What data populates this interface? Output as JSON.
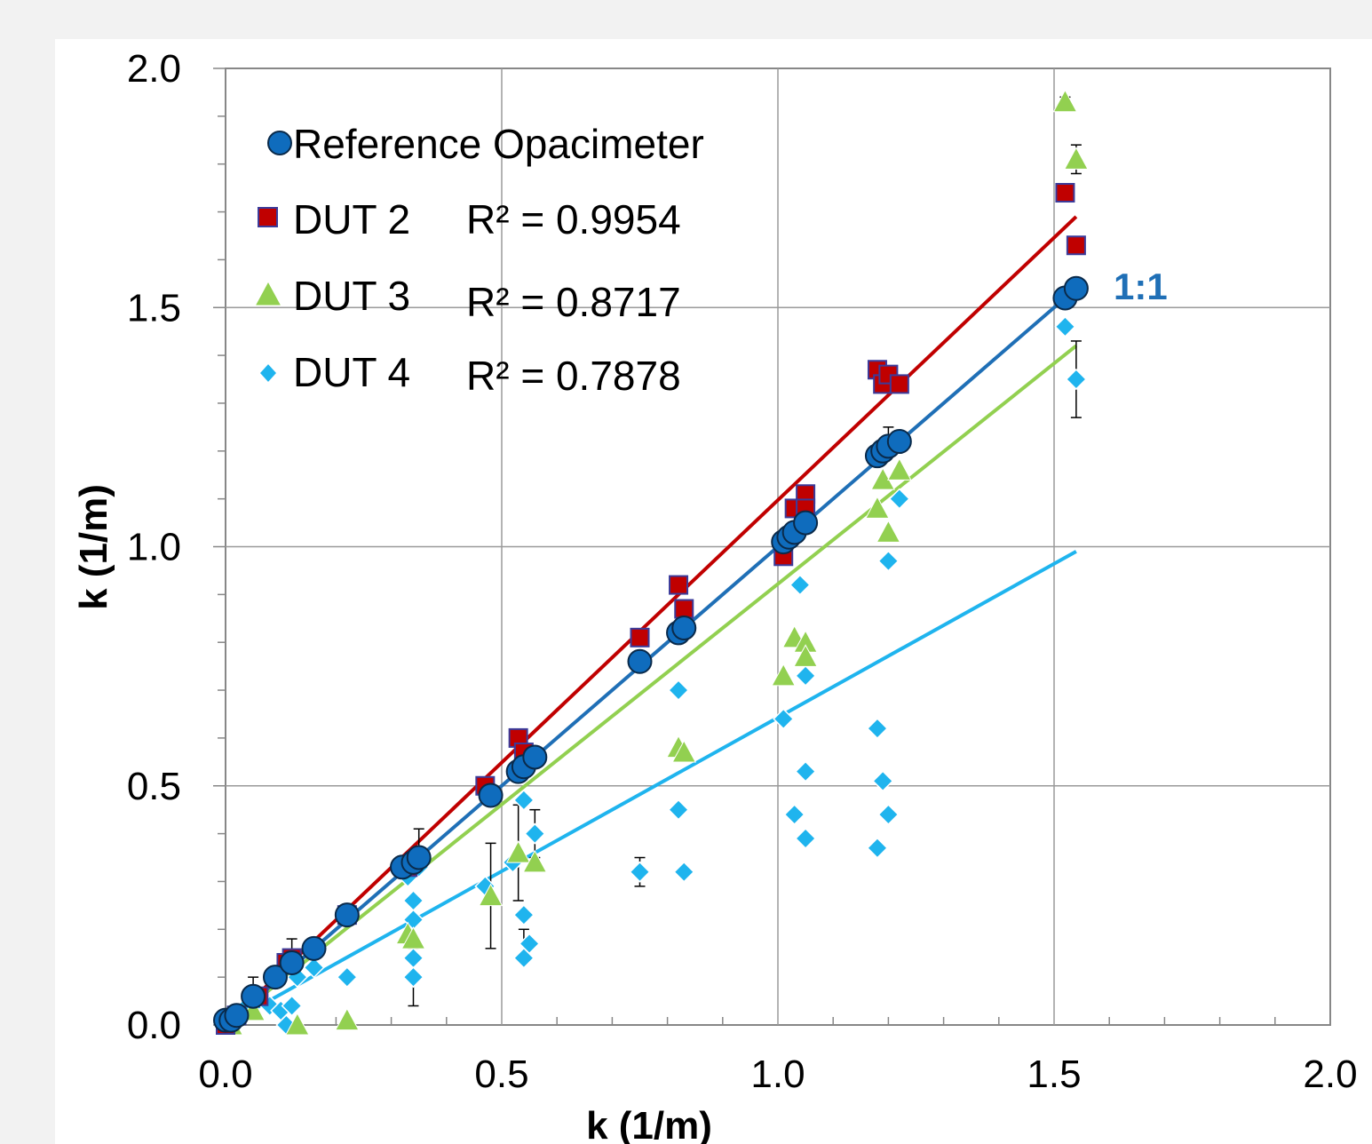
{
  "chart_data": {
    "type": "scatter",
    "xlabel": "k (1/m)",
    "ylabel": "k (1/m)",
    "xlim": [
      0,
      2
    ],
    "ylim": [
      0,
      2
    ],
    "x_ticks": [
      "0.0",
      "0.5",
      "1.0",
      "1.5",
      "2.0"
    ],
    "y_ticks": [
      "0.0",
      "0.5",
      "1.0",
      "1.5",
      "2.0"
    ],
    "grid": true,
    "legend_position": "top-left",
    "annotation": "1:1",
    "annotation_color": "#1f6fb6",
    "series": [
      {
        "name": "Reference Opacimeter",
        "legend_label": "Reference Opacimeter",
        "marker": "circle",
        "color": "#0f6cbd",
        "fit_color": "#1f6fb6",
        "fit": [
          [
            0.0,
            0.0
          ],
          [
            1.54,
            1.54
          ]
        ],
        "points": [
          [
            0.0,
            0.01
          ],
          [
            0.01,
            0.01
          ],
          [
            0.02,
            0.02
          ],
          [
            0.05,
            0.06
          ],
          [
            0.09,
            0.1
          ],
          [
            0.12,
            0.13
          ],
          [
            0.16,
            0.16
          ],
          [
            0.22,
            0.23
          ],
          [
            0.32,
            0.33
          ],
          [
            0.34,
            0.34
          ],
          [
            0.35,
            0.35
          ],
          [
            0.48,
            0.48
          ],
          [
            0.53,
            0.53
          ],
          [
            0.54,
            0.54
          ],
          [
            0.56,
            0.56
          ],
          [
            0.75,
            0.76
          ],
          [
            0.82,
            0.82
          ],
          [
            0.83,
            0.83
          ],
          [
            1.01,
            1.01
          ],
          [
            1.02,
            1.02
          ],
          [
            1.03,
            1.03
          ],
          [
            1.05,
            1.05
          ],
          [
            1.18,
            1.19
          ],
          [
            1.19,
            1.2
          ],
          [
            1.2,
            1.21
          ],
          [
            1.22,
            1.22
          ],
          [
            1.52,
            1.52
          ],
          [
            1.54,
            1.54
          ]
        ],
        "error_bars": [
          [
            0.05,
            0.07,
            0.03
          ],
          [
            0.12,
            0.15,
            0.03
          ],
          [
            0.35,
            0.38,
            0.03
          ],
          [
            1.2,
            1.23,
            0.02
          ]
        ]
      },
      {
        "name": "DUT 2",
        "legend_label": "DUT 2",
        "r2_label": "R² = 0.9954",
        "marker": "square",
        "color": "#c00000",
        "fit_color": "#c00000",
        "fit": [
          [
            0.0,
            0.0
          ],
          [
            1.54,
            1.69
          ]
        ],
        "points": [
          [
            0.0,
            0.0
          ],
          [
            0.02,
            0.02
          ],
          [
            0.06,
            0.06
          ],
          [
            0.11,
            0.13
          ],
          [
            0.12,
            0.14
          ],
          [
            0.22,
            0.23
          ],
          [
            0.33,
            0.33
          ],
          [
            0.47,
            0.5
          ],
          [
            0.53,
            0.6
          ],
          [
            0.54,
            0.57
          ],
          [
            0.75,
            0.81
          ],
          [
            0.82,
            0.92
          ],
          [
            0.83,
            0.87
          ],
          [
            1.01,
            0.98
          ],
          [
            1.03,
            1.08
          ],
          [
            1.05,
            1.11
          ],
          [
            1.05,
            1.08
          ],
          [
            1.18,
            1.37
          ],
          [
            1.19,
            1.34
          ],
          [
            1.2,
            1.36
          ],
          [
            1.22,
            1.34
          ],
          [
            1.52,
            1.74
          ],
          [
            1.54,
            1.63
          ]
        ]
      },
      {
        "name": "DUT 3",
        "legend_label": "DUT 3",
        "r2_label": "R² = 0.8717",
        "marker": "triangle",
        "color": "#92d050",
        "fit_color": "#92d050",
        "fit": [
          [
            0.0,
            0.0
          ],
          [
            1.54,
            1.42
          ]
        ],
        "points": [
          [
            0.01,
            0.0
          ],
          [
            0.05,
            0.03
          ],
          [
            0.13,
            0.0
          ],
          [
            0.22,
            0.01
          ],
          [
            0.33,
            0.19
          ],
          [
            0.34,
            0.18
          ],
          [
            0.48,
            0.27
          ],
          [
            0.53,
            0.36
          ],
          [
            0.56,
            0.34
          ],
          [
            0.82,
            0.58
          ],
          [
            0.83,
            0.57
          ],
          [
            1.01,
            0.73
          ],
          [
            1.03,
            0.81
          ],
          [
            1.05,
            0.8
          ],
          [
            1.05,
            0.77
          ],
          [
            1.18,
            1.08
          ],
          [
            1.19,
            1.14
          ],
          [
            1.2,
            1.03
          ],
          [
            1.22,
            1.16
          ],
          [
            1.52,
            1.93
          ],
          [
            1.54,
            1.81
          ]
        ],
        "error_bars": [
          [
            0.48,
            0.27,
            0.11
          ],
          [
            0.53,
            0.36,
            0.1
          ],
          [
            1.52,
            1.93,
            0.01
          ],
          [
            1.54,
            1.81,
            0.03
          ]
        ]
      },
      {
        "name": "DUT 4",
        "legend_label": "DUT 4",
        "r2_label": "R² = 0.7878",
        "marker": "diamond",
        "color": "#1fb4ee",
        "fit_color": "#1fb4ee",
        "fit": [
          [
            0.0,
            0.0
          ],
          [
            1.54,
            0.99
          ]
        ],
        "points": [
          [
            0.0,
            0.0
          ],
          [
            0.01,
            0.0
          ],
          [
            0.03,
            0.03
          ],
          [
            0.08,
            0.04
          ],
          [
            0.1,
            0.03
          ],
          [
            0.11,
            0.0
          ],
          [
            0.12,
            0.04
          ],
          [
            0.13,
            0.1
          ],
          [
            0.16,
            0.12
          ],
          [
            0.22,
            0.1
          ],
          [
            0.33,
            0.31
          ],
          [
            0.34,
            0.26
          ],
          [
            0.34,
            0.22
          ],
          [
            0.34,
            0.14
          ],
          [
            0.34,
            0.1
          ],
          [
            0.35,
            0.33
          ],
          [
            0.47,
            0.29
          ],
          [
            0.52,
            0.34
          ],
          [
            0.54,
            0.47
          ],
          [
            0.54,
            0.23
          ],
          [
            0.55,
            0.17
          ],
          [
            0.54,
            0.14
          ],
          [
            0.56,
            0.4
          ],
          [
            0.75,
            0.32
          ],
          [
            0.82,
            0.7
          ],
          [
            0.82,
            0.57
          ],
          [
            0.82,
            0.45
          ],
          [
            0.83,
            0.32
          ],
          [
            1.01,
            0.64
          ],
          [
            1.03,
            0.44
          ],
          [
            1.04,
            0.92
          ],
          [
            1.05,
            0.73
          ],
          [
            1.05,
            0.39
          ],
          [
            1.05,
            0.53
          ],
          [
            1.18,
            0.62
          ],
          [
            1.19,
            0.51
          ],
          [
            1.18,
            0.37
          ],
          [
            1.2,
            0.44
          ],
          [
            1.2,
            0.97
          ],
          [
            1.22,
            1.1
          ],
          [
            1.52,
            1.46
          ],
          [
            1.54,
            1.35
          ]
        ],
        "error_bars": [
          [
            0.34,
            0.1,
            0.06
          ],
          [
            0.75,
            0.32,
            0.03
          ],
          [
            1.54,
            1.35,
            0.08
          ],
          [
            0.54,
            0.17,
            0.03
          ],
          [
            0.56,
            0.4,
            0.05
          ]
        ]
      }
    ]
  }
}
